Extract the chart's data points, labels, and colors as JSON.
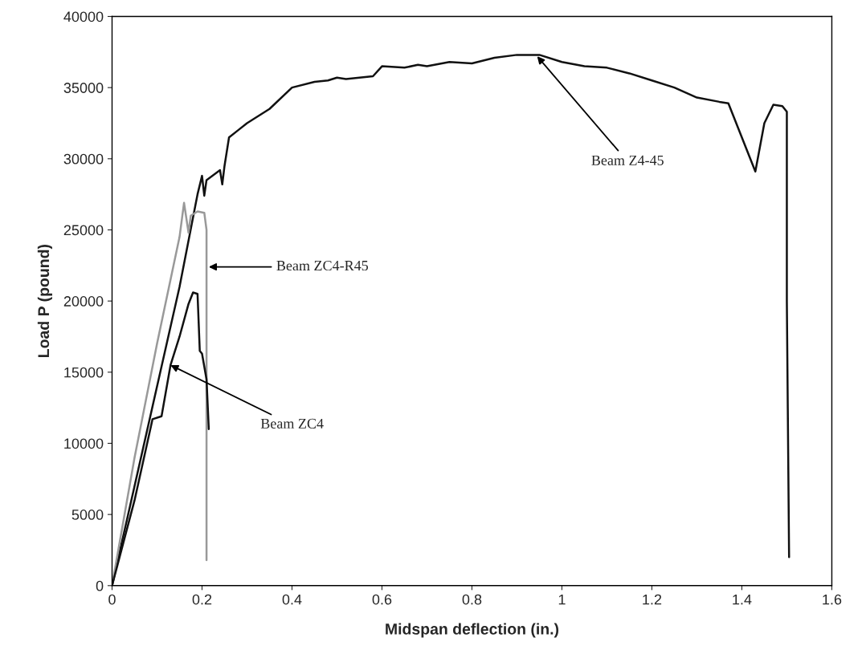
{
  "chart_data": {
    "type": "line",
    "xlabel": "Midspan deflection (in.)",
    "ylabel": "Load P (pound)",
    "xlim": [
      0,
      1.6
    ],
    "xticks": [
      0,
      0.2,
      0.4,
      0.6,
      0.8,
      1,
      1.2,
      1.4,
      1.6
    ],
    "ylim": [
      0,
      40000
    ],
    "yticks": [
      0,
      5000,
      10000,
      15000,
      20000,
      25000,
      30000,
      35000,
      40000
    ],
    "grid": false,
    "marker": "none",
    "line_style": "solid",
    "series": [
      {
        "color": "#111111",
        "x": [
          0,
          0.05,
          0.1,
          0.15,
          0.19,
          0.2,
          0.205,
          0.21,
          0.24,
          0.245,
          0.25,
          0.26,
          0.28,
          0.3,
          0.35,
          0.4,
          0.45,
          0.48,
          0.5,
          0.52,
          0.55,
          0.58,
          0.6,
          0.65,
          0.68,
          0.7,
          0.75,
          0.8,
          0.85,
          0.9,
          0.95,
          1.0,
          1.05,
          1.1,
          1.15,
          1.2,
          1.25,
          1.3,
          1.35,
          1.37,
          1.43,
          1.45,
          1.47,
          1.49,
          1.5,
          1.5,
          1.505
        ],
        "values": [
          0,
          7000,
          14000,
          21000,
          27500,
          28800,
          27400,
          28500,
          29200,
          28200,
          29500,
          31500,
          32000,
          32500,
          33500,
          35000,
          35400,
          35500,
          35700,
          35600,
          35700,
          35800,
          36500,
          36400,
          36600,
          36500,
          36800,
          36700,
          37100,
          37300,
          37300,
          36800,
          36500,
          36400,
          36000,
          35500,
          35000,
          34300,
          34000,
          33900,
          29100,
          32500,
          33800,
          33700,
          33300,
          20000,
          2000
        ]
      },
      {
        "color": "#999999",
        "x": [
          0,
          0.05,
          0.1,
          0.15,
          0.16,
          0.17,
          0.175,
          0.19,
          0.205,
          0.21,
          0.21
        ],
        "values": [
          0,
          9000,
          17000,
          24500,
          26900,
          24800,
          26000,
          26300,
          26200,
          25000,
          1800
        ]
      },
      {
        "color": "#111111",
        "x": [
          0,
          0.05,
          0.09,
          0.11,
          0.13,
          0.15,
          0.17,
          0.18,
          0.19,
          0.195,
          0.2,
          0.21,
          0.215
        ],
        "values": [
          0,
          6000,
          11700,
          11900,
          15500,
          17500,
          19800,
          20600,
          20500,
          16500,
          16300,
          14500,
          11000
        ]
      }
    ],
    "annotations": [
      {
        "text": "Beam Z4-45",
        "x": 0.945,
        "y": 37200
      },
      {
        "text": "Beam ZC4-R45",
        "x": 0.215,
        "y": 22400
      },
      {
        "text": "Beam ZC4",
        "x": 0.13,
        "y": 15500
      }
    ]
  }
}
